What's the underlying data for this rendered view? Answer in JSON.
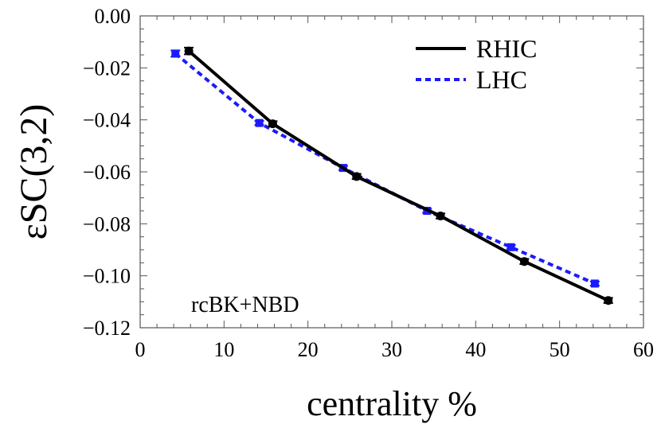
{
  "chart_data": {
    "type": "line",
    "xlabel": "centrality %",
    "ylabel": "εSC(3,2)",
    "xlim": [
      0,
      60
    ],
    "ylim": [
      -0.12,
      0.0
    ],
    "x_ticks": [
      0,
      10,
      20,
      30,
      40,
      50,
      60
    ],
    "y_ticks": [
      0.0,
      -0.02,
      -0.04,
      -0.06,
      -0.08,
      -0.1,
      -0.12
    ],
    "x_tick_labels": [
      "0",
      "10",
      "20",
      "30",
      "40",
      "50",
      "60"
    ],
    "y_tick_labels": [
      "0.00",
      "−0.02",
      "−0.04",
      "−0.06",
      "−0.08",
      "−0.10",
      "−0.12"
    ],
    "grid": false,
    "legend_position": "top-right",
    "annotation": "rcBK+NBD",
    "series": [
      {
        "name": "RHIC",
        "color": "#000000",
        "line_style": "solid",
        "x": [
          5.8,
          15.8,
          25.8,
          35.8,
          45.8,
          55.8
        ],
        "y": [
          -0.0135,
          -0.0415,
          -0.0618,
          -0.077,
          -0.0945,
          -0.1095
        ],
        "err": [
          0.0013,
          0.001,
          0.001,
          0.001,
          0.001,
          0.001
        ]
      },
      {
        "name": "LHC",
        "color": "#1a1aff",
        "line_style": "dashed",
        "x": [
          4.2,
          14.2,
          24.2,
          34.2,
          44.2,
          54.2
        ],
        "y": [
          -0.0145,
          -0.0412,
          -0.0585,
          -0.075,
          -0.089,
          -0.103
        ],
        "err": [
          0.0012,
          0.0008,
          0.0008,
          0.0008,
          0.0008,
          0.0008
        ]
      }
    ]
  }
}
